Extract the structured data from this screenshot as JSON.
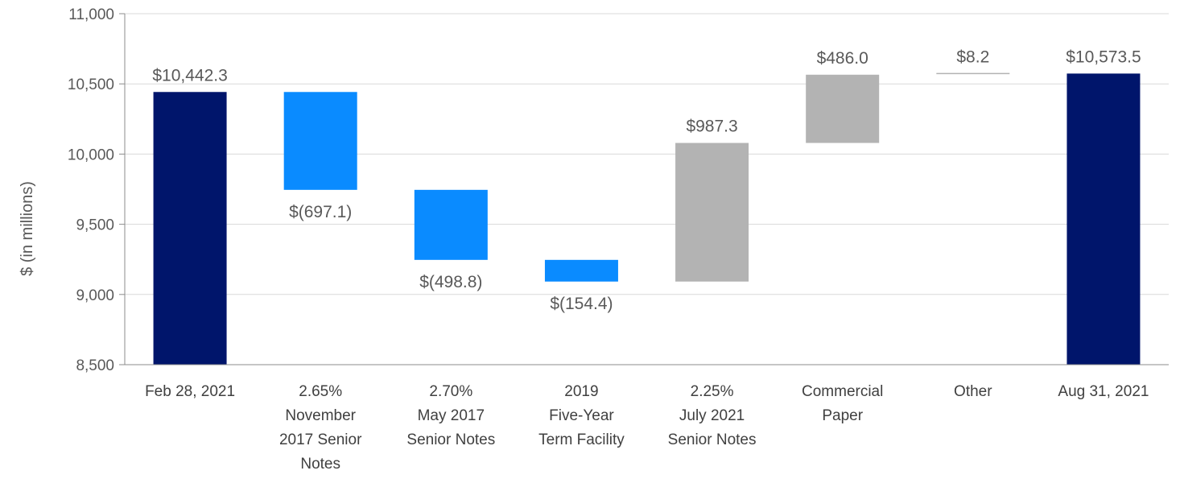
{
  "chart_data": {
    "type": "waterfall",
    "ylabel": "$ (in millions)",
    "ylim": [
      8500,
      11000
    ],
    "yticks": [
      8500,
      9000,
      9500,
      10000,
      10500,
      11000
    ],
    "ytick_labels": [
      "8,500",
      "9,000",
      "9,500",
      "10,000",
      "10,500",
      "11,000"
    ],
    "grid": true,
    "steps": [
      {
        "category": [
          "Feb 28, 2021"
        ],
        "kind": "total",
        "value": 10442.3,
        "label": "$10,442.3"
      },
      {
        "category": [
          "2.65%",
          "November",
          "2017 Senior",
          "Notes"
        ],
        "kind": "decrease",
        "value": -697.1,
        "label": "$(697.1)"
      },
      {
        "category": [
          "2.70%",
          "May 2017",
          "Senior Notes"
        ],
        "kind": "decrease",
        "value": -498.8,
        "label": "$(498.8)"
      },
      {
        "category": [
          "2019",
          "Five-Year",
          "Term Facility"
        ],
        "kind": "decrease",
        "value": -154.4,
        "label": "$(154.4)"
      },
      {
        "category": [
          "2.25%",
          "July 2021",
          "Senior Notes"
        ],
        "kind": "increase",
        "value": 987.3,
        "label": "$987.3"
      },
      {
        "category": [
          "Commercial",
          "Paper"
        ],
        "kind": "increase",
        "value": 486.0,
        "label": "$486.0"
      },
      {
        "category": [
          "Other"
        ],
        "kind": "increase",
        "value": 8.2,
        "label": "$8.2"
      },
      {
        "category": [
          "Aug 31, 2021"
        ],
        "kind": "total",
        "value": 10573.5,
        "label": "$10,573.5"
      }
    ],
    "colors": {
      "total": "#00156B",
      "decrease": "#0A8BFF",
      "increase": "#B3B3B3",
      "grid": "#D9D9D9",
      "axis": "#8C8C8C"
    }
  }
}
